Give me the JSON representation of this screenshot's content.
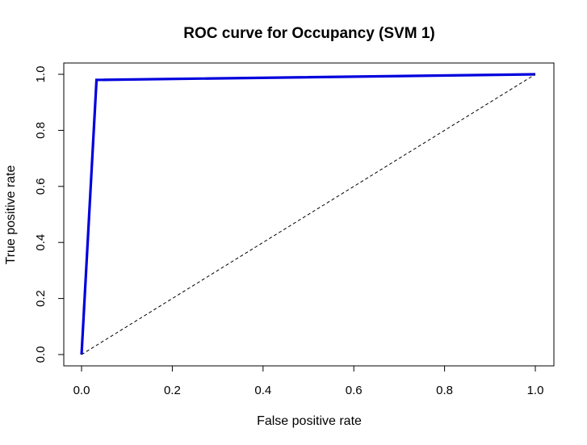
{
  "chart_data": {
    "type": "line",
    "title": "ROC curve for Occupancy (SVM 1)",
    "xlabel": "False positive rate",
    "ylabel": "True positive rate",
    "xlim": [
      0,
      1
    ],
    "ylim": [
      0,
      1
    ],
    "x_ticks": [
      0.0,
      0.2,
      0.4,
      0.6,
      0.8,
      1.0
    ],
    "x_tick_labels": [
      "0.0",
      "0.2",
      "0.4",
      "0.6",
      "0.8",
      "1.0"
    ],
    "y_ticks": [
      0.0,
      0.2,
      0.4,
      0.6,
      0.8,
      1.0
    ],
    "y_tick_labels": [
      "0.0",
      "0.2",
      "0.4",
      "0.6",
      "0.8",
      "1.0"
    ],
    "grid": false,
    "series": [
      {
        "x": [
          0.0,
          0.033,
          1.0
        ],
        "y": [
          0.0,
          0.98,
          1.0
        ],
        "color": "#0000dd",
        "style": "solid"
      },
      {
        "x": [
          0.0,
          1.0
        ],
        "y": [
          0.0,
          1.0
        ],
        "color": "#000000",
        "style": "dashed"
      }
    ]
  }
}
